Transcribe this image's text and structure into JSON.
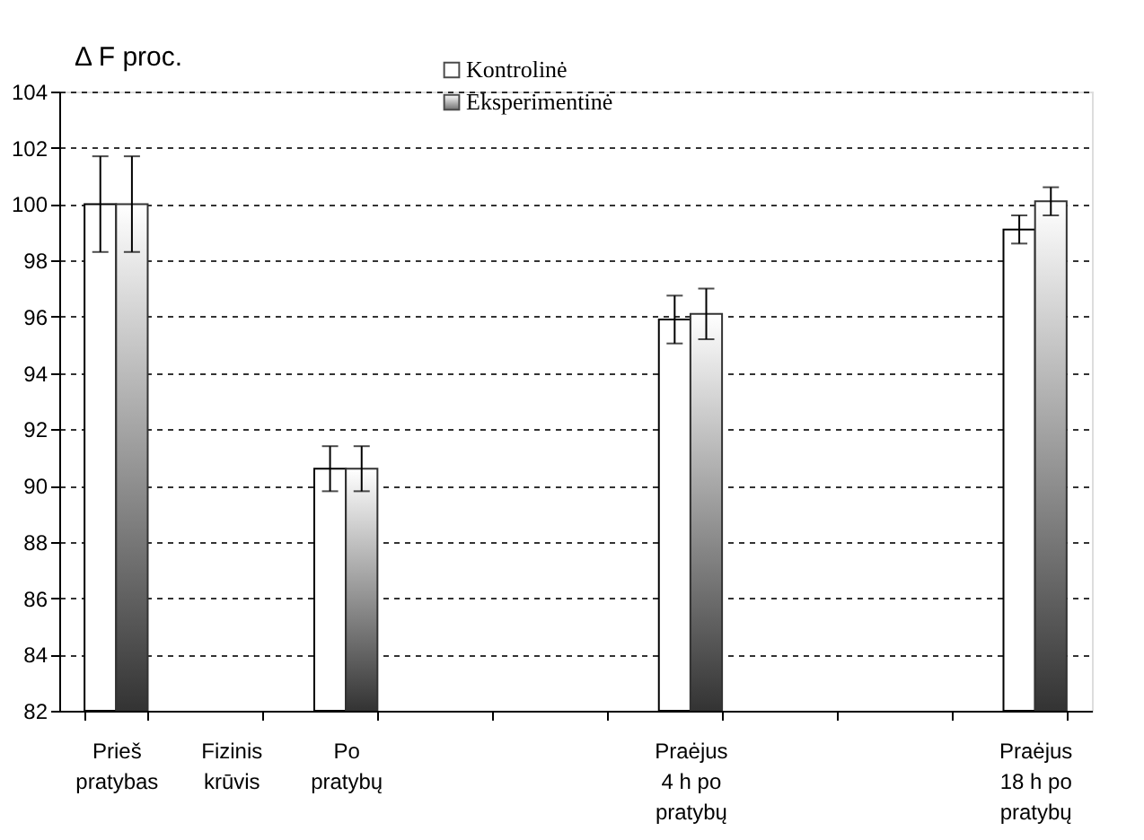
{
  "chart_data": {
    "type": "bar",
    "ylabel": "Δ F proc.",
    "categories": [
      "Prieš pratybas",
      "Fizinis krūvis",
      "Po pratybų",
      null,
      null,
      "Praėjus 4 h po pratybų",
      null,
      null,
      "Praėjus 18 h po pratybų"
    ],
    "series": [
      {
        "name": "Kontrolinė",
        "color": "#ffffff",
        "values": [
          100,
          null,
          90.6,
          null,
          null,
          95.9,
          null,
          null,
          99.1
        ],
        "errors": [
          1.7,
          null,
          0.8,
          null,
          null,
          0.85,
          null,
          null,
          0.5
        ]
      },
      {
        "name": "Eksperimentinė",
        "color": "#333333",
        "values": [
          100,
          null,
          90.6,
          null,
          null,
          96.1,
          null,
          null,
          100.1
        ],
        "errors": [
          1.7,
          null,
          0.8,
          null,
          null,
          0.9,
          null,
          null,
          0.5
        ]
      }
    ],
    "ylim": [
      82,
      104
    ],
    "yticks": [
      82,
      84,
      86,
      88,
      90,
      92,
      94,
      96,
      98,
      100,
      102,
      104
    ],
    "grid": "y",
    "legend": "top"
  }
}
